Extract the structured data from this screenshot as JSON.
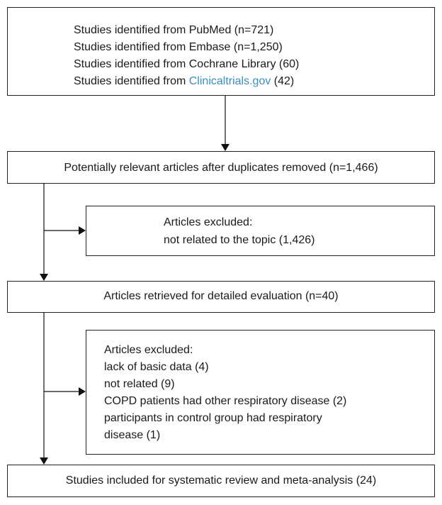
{
  "identification": {
    "lines": [
      "Studies identified from PubMed (n=721)",
      "Studies identified from Embase (n=1,250)",
      "Studies identified from Cochrane Library (60)"
    ],
    "last_line": {
      "text": "Studies identified from ",
      "link": "Clinicaltrials.gov",
      "suffix": " (42)"
    }
  },
  "screening": "Potentially relevant articles after duplicates removed (n=1,466)",
  "exclusion_1": {
    "title": "Articles excluded:",
    "lines": [
      "not related to the topic (1,426)"
    ]
  },
  "eligibility": "Articles retrieved for detailed evaluation (n=40)",
  "exclusion_2": {
    "title": "Articles excluded:",
    "lines": [
      "lack of basic data (4)",
      "not related (9)",
      "COPD patients had other respiratory disease (2)",
      "participants in control group had respiratory",
      "disease (1)"
    ]
  },
  "included": "Studies included for systematic review and meta-analysis (24)"
}
